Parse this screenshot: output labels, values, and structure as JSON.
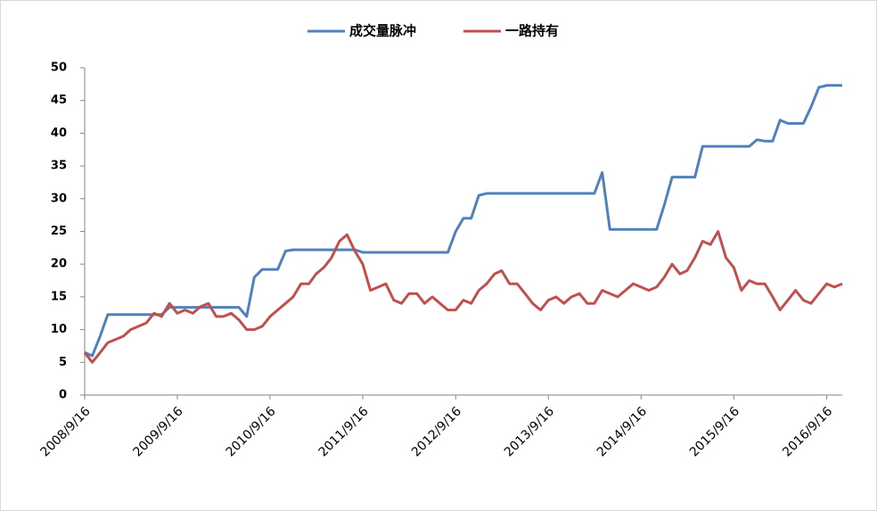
{
  "chart_data": {
    "type": "line",
    "x": [
      "2008/9/16",
      "2008/10/16",
      "2008/11/16",
      "2008/12/16",
      "2009/1/16",
      "2009/2/16",
      "2009/3/16",
      "2009/4/16",
      "2009/5/16",
      "2009/6/16",
      "2009/7/16",
      "2009/8/16",
      "2009/9/16",
      "2009/10/16",
      "2009/11/16",
      "2009/12/16",
      "2010/1/16",
      "2010/2/16",
      "2010/3/16",
      "2010/4/16",
      "2010/5/16",
      "2010/6/16",
      "2010/7/16",
      "2010/8/16",
      "2010/9/16",
      "2010/10/16",
      "2010/11/16",
      "2010/12/16",
      "2011/1/16",
      "2011/2/16",
      "2011/3/16",
      "2011/4/16",
      "2011/5/16",
      "2011/6/16",
      "2011/7/16",
      "2011/8/16",
      "2011/9/16",
      "2011/10/16",
      "2011/11/16",
      "2011/12/16",
      "2012/1/16",
      "2012/2/16",
      "2012/3/16",
      "2012/4/16",
      "2012/5/16",
      "2012/6/16",
      "2012/7/16",
      "2012/8/16",
      "2012/9/16",
      "2012/10/16",
      "2012/11/16",
      "2012/12/16",
      "2013/1/16",
      "2013/2/16",
      "2013/3/16",
      "2013/4/16",
      "2013/5/16",
      "2013/6/16",
      "2013/7/16",
      "2013/8/16",
      "2013/9/16",
      "2013/10/16",
      "2013/11/16",
      "2013/12/16",
      "2014/1/16",
      "2014/2/16",
      "2014/3/16",
      "2014/4/16",
      "2014/5/16",
      "2014/6/16",
      "2014/7/16",
      "2014/8/16",
      "2014/9/16",
      "2014/10/16",
      "2014/11/16",
      "2014/12/16",
      "2015/1/16",
      "2015/2/16",
      "2015/3/16",
      "2015/4/16",
      "2015/5/16",
      "2015/6/16",
      "2015/7/16",
      "2015/8/16",
      "2015/9/16",
      "2015/10/16",
      "2015/11/16",
      "2015/12/16",
      "2016/1/16",
      "2016/2/16",
      "2016/3/16",
      "2016/4/16",
      "2016/5/16",
      "2016/6/16",
      "2016/7/16",
      "2016/8/16",
      "2016/9/16",
      "2016/10/16",
      "2016/11/16"
    ],
    "series": [
      {
        "name": "成交量脉冲",
        "color": "#4f81bd",
        "values": [
          6.5,
          6,
          9,
          12.3,
          12.3,
          12.3,
          12.3,
          12.3,
          12.3,
          12.3,
          12.3,
          13.4,
          13.4,
          13.4,
          13.4,
          13.4,
          13.4,
          13.4,
          13.4,
          13.4,
          13.4,
          12,
          18,
          19.2,
          19.2,
          19.2,
          22,
          22.2,
          22.2,
          22.2,
          22.2,
          22.2,
          22.2,
          22.2,
          22.2,
          22.2,
          21.8,
          21.8,
          21.8,
          21.8,
          21.8,
          21.8,
          21.8,
          21.8,
          21.8,
          21.8,
          21.8,
          21.8,
          25,
          27,
          27,
          30.5,
          30.8,
          30.8,
          30.8,
          30.8,
          30.8,
          30.8,
          30.8,
          30.8,
          30.8,
          30.8,
          30.8,
          30.8,
          30.8,
          30.8,
          30.8,
          34,
          25.3,
          25.3,
          25.3,
          25.3,
          25.3,
          25.3,
          25.3,
          29,
          33.3,
          33.3,
          33.3,
          33.3,
          38,
          38,
          38,
          38,
          38,
          38,
          38,
          39,
          38.8,
          38.8,
          42,
          41.5,
          41.5,
          41.5,
          44,
          47,
          47.3,
          47.3,
          47.3
        ]
      },
      {
        "name": "一路持有",
        "color": "#c0504d",
        "values": [
          6.5,
          5,
          6.5,
          8,
          8.5,
          9,
          10,
          10.5,
          11,
          12.5,
          12,
          14,
          12.5,
          13,
          12.5,
          13.5,
          14,
          12,
          12,
          12.5,
          11.5,
          10,
          10,
          10.5,
          12,
          13,
          14,
          15,
          17,
          17,
          18.5,
          19.5,
          21,
          23.5,
          24.5,
          22,
          20,
          16,
          16.5,
          17,
          14.5,
          14,
          15.5,
          15.5,
          14,
          15,
          14,
          13,
          13,
          14.5,
          14,
          16,
          17,
          18.5,
          19,
          17,
          17,
          15.5,
          14,
          13,
          14.5,
          15,
          14,
          15,
          15.5,
          14,
          14,
          16,
          15.5,
          15,
          16,
          17,
          16.5,
          16,
          16.5,
          18,
          20,
          18.5,
          19,
          21,
          23.5,
          23,
          25,
          21,
          19.5,
          16,
          17.5,
          17,
          17,
          15,
          13,
          14.5,
          16,
          14.5,
          14,
          15.5,
          17,
          16.5,
          17
        ]
      }
    ],
    "xlim": [
      "2008/9/16",
      "2016/11/16"
    ],
    "xticks": [
      "2008/9/16",
      "2009/9/16",
      "2010/9/16",
      "2011/9/16",
      "2012/9/16",
      "2013/9/16",
      "2014/9/16",
      "2015/9/16",
      "2016/9/16"
    ],
    "ylim": [
      0,
      50
    ],
    "yticks": [
      0,
      5,
      10,
      15,
      20,
      25,
      30,
      35,
      40,
      45,
      50
    ],
    "legend": "top"
  }
}
